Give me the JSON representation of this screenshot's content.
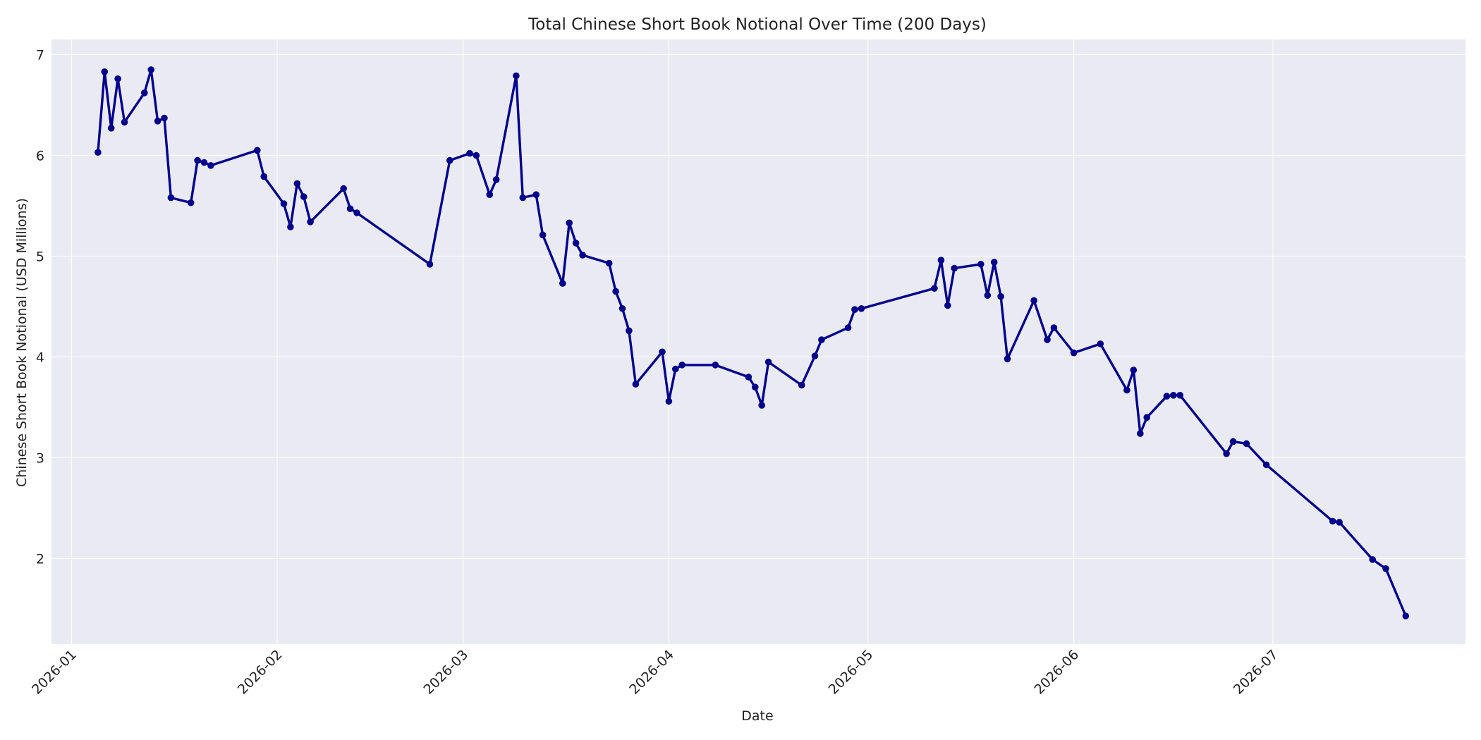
{
  "chart_data": {
    "type": "line",
    "title": "Total Chinese Short Book Notional Over Time (200 Days)",
    "xlabel": "Date",
    "ylabel": "Chinese Short Book Notional (USD Millions)",
    "xlim": [
      "2025-12-29",
      "2026-07-30"
    ],
    "ylim": [
      1.15,
      7.15
    ],
    "grid": true,
    "line_color": "#00008b",
    "plot_bg": "#eaeaf2",
    "x_ticks": [
      "2026-01-01",
      "2026-02-01",
      "2026-03-01",
      "2026-04-01",
      "2026-05-01",
      "2026-06-01",
      "2026-07-01"
    ],
    "x_tick_labels": [
      "2026-01",
      "2026-02",
      "2026-03",
      "2026-04",
      "2026-05",
      "2026-06",
      "2026-07"
    ],
    "y_ticks": [
      2,
      3,
      4,
      5,
      6,
      7
    ],
    "y_tick_labels": [
      "2",
      "3",
      "4",
      "5",
      "6",
      "7"
    ],
    "series": [
      {
        "x": [
          "2026-01-05",
          "2026-01-06",
          "2026-01-07",
          "2026-01-08",
          "2026-01-09",
          "2026-01-12",
          "2026-01-13",
          "2026-01-14",
          "2026-01-15",
          "2026-01-16",
          "2026-01-19",
          "2026-01-20",
          "2026-01-21",
          "2026-01-22",
          "2026-01-29",
          "2026-01-30",
          "2026-02-02",
          "2026-02-03",
          "2026-02-04",
          "2026-02-05",
          "2026-02-06",
          "2026-02-11",
          "2026-02-12",
          "2026-02-13",
          "2026-02-24",
          "2026-02-27",
          "2026-03-02",
          "2026-03-03",
          "2026-03-05",
          "2026-03-06",
          "2026-03-09",
          "2026-03-10",
          "2026-03-12",
          "2026-03-13",
          "2026-03-16",
          "2026-03-17",
          "2026-03-18",
          "2026-03-19",
          "2026-03-23",
          "2026-03-24",
          "2026-03-25",
          "2026-03-26",
          "2026-03-27",
          "2026-03-31",
          "2026-04-01",
          "2026-04-02",
          "2026-04-03",
          "2026-04-08",
          "2026-04-13",
          "2026-04-14",
          "2026-04-15",
          "2026-04-16",
          "2026-04-21",
          "2026-04-23",
          "2026-04-24",
          "2026-04-28",
          "2026-04-29",
          "2026-04-30",
          "2026-05-11",
          "2026-05-12",
          "2026-05-13",
          "2026-05-14",
          "2026-05-18",
          "2026-05-19",
          "2026-05-20",
          "2026-05-21",
          "2026-05-22",
          "2026-05-26",
          "2026-05-28",
          "2026-05-29",
          "2026-06-01",
          "2026-06-05",
          "2026-06-09",
          "2026-06-10",
          "2026-06-11",
          "2026-06-12",
          "2026-06-15",
          "2026-06-16",
          "2026-06-17",
          "2026-06-24",
          "2026-06-25",
          "2026-06-27",
          "2026-06-30",
          "2026-07-10",
          "2026-07-11",
          "2026-07-16",
          "2026-07-18",
          "2026-07-21"
        ],
        "y": [
          6.03,
          6.83,
          6.27,
          6.76,
          6.33,
          6.62,
          6.85,
          6.34,
          6.37,
          5.58,
          5.53,
          5.95,
          5.93,
          5.9,
          6.05,
          5.79,
          5.52,
          5.29,
          5.72,
          5.59,
          5.34,
          5.67,
          5.47,
          5.43,
          4.92,
          5.95,
          6.02,
          6.0,
          5.61,
          5.76,
          6.79,
          5.58,
          5.61,
          5.21,
          4.73,
          5.33,
          5.13,
          5.01,
          4.93,
          4.65,
          4.48,
          4.26,
          3.73,
          4.05,
          3.56,
          3.88,
          3.92,
          3.92,
          3.8,
          3.7,
          3.52,
          3.95,
          3.72,
          4.01,
          4.17,
          4.29,
          4.47,
          4.48,
          4.68,
          4.96,
          4.51,
          4.88,
          4.92,
          4.61,
          4.94,
          4.6,
          3.98,
          4.56,
          4.17,
          4.29,
          4.04,
          4.13,
          3.67,
          3.87,
          3.24,
          3.4,
          3.61,
          3.62,
          3.62,
          3.04,
          3.16,
          3.14,
          2.93,
          2.37,
          2.36,
          1.99,
          1.9,
          1.43
        ]
      }
    ]
  }
}
